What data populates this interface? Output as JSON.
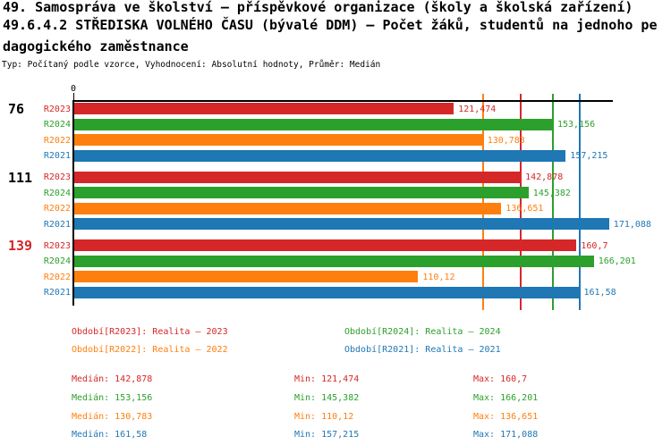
{
  "header": {
    "title_line1": "49. Samospráva ve školství – příspěvkové organizace (školy a školská zařízení)",
    "title_line2": "49.6.4.2 STŘEDISKA VOLNÉHO ČASU (bývalé DDM) – Počet žáků, studentů na jednoho pe",
    "title_line3": "dagogického zaměstnance",
    "subtitle": "Typ: Počítaný podle vzorce, Vyhodnocení: Absolutní hodnoty, Průměr: Medián"
  },
  "colors": {
    "R2023": "#d62728",
    "R2024": "#2ca02c",
    "R2022": "#ff7f0e",
    "R2021": "#1f77b4",
    "axis": "#000000"
  },
  "chart_data": {
    "type": "bar",
    "orientation": "horizontal",
    "title": "Počet žáků, studentů na jednoho pedagogického zaměstnance",
    "axis": {
      "zero_label": "0",
      "xmin": 0,
      "xmax": 172.3
    },
    "grid": false,
    "categories": [
      "76",
      "111",
      "139"
    ],
    "category_label_colors": [
      "#000000",
      "#000000",
      "#d62728"
    ],
    "series_order": [
      "R2023",
      "R2024",
      "R2022",
      "R2021"
    ],
    "groups": [
      {
        "category": "76",
        "bars": [
          {
            "series": "R2023",
            "value": 121.474,
            "label": "121,474"
          },
          {
            "series": "R2024",
            "value": 153.156,
            "label": "153,156"
          },
          {
            "series": "R2022",
            "value": 130.783,
            "label": "130,783"
          },
          {
            "series": "R2021",
            "value": 157.215,
            "label": "157,215"
          }
        ]
      },
      {
        "category": "111",
        "bars": [
          {
            "series": "R2023",
            "value": 142.878,
            "label": "142,878"
          },
          {
            "series": "R2024",
            "value": 145.382,
            "label": "145,382"
          },
          {
            "series": "R2022",
            "value": 136.651,
            "label": "136,651"
          },
          {
            "series": "R2021",
            "value": 171.088,
            "label": "171,088"
          }
        ]
      },
      {
        "category": "139",
        "bars": [
          {
            "series": "R2023",
            "value": 160.7,
            "label": "160,7"
          },
          {
            "series": "R2024",
            "value": 166.201,
            "label": "166,201"
          },
          {
            "series": "R2022",
            "value": 110.12,
            "label": "110,12"
          },
          {
            "series": "R2021",
            "value": 161.58,
            "label": "161,58"
          }
        ]
      }
    ],
    "median_lines": [
      {
        "series": "R2022",
        "value": 130.783
      },
      {
        "series": "R2023",
        "value": 142.878
      },
      {
        "series": "R2024",
        "value": 153.156
      },
      {
        "series": "R2021",
        "value": 161.58
      }
    ],
    "legend_position": "bottom"
  },
  "legend": [
    {
      "series": "R2023",
      "text": "Období[R2023]: Realita – 2023"
    },
    {
      "series": "R2024",
      "text": "Období[R2024]: Realita – 2024"
    },
    {
      "series": "R2022",
      "text": "Období[R2022]: Realita – 2022"
    },
    {
      "series": "R2021",
      "text": "Období[R2021]: Realita – 2021"
    }
  ],
  "stats": [
    {
      "series": "R2023",
      "median": "Medián: 142,878",
      "min": "Min: 121,474",
      "max": "Max: 160,7"
    },
    {
      "series": "R2024",
      "median": "Medián: 153,156",
      "min": "Min: 145,382",
      "max": "Max: 166,201"
    },
    {
      "series": "R2022",
      "median": "Medián: 130,783",
      "min": "Min: 110,12",
      "max": "Max: 136,651"
    },
    {
      "series": "R2021",
      "median": "Medián: 161,58",
      "min": "Min: 157,215",
      "max": "Max: 171,088"
    }
  ]
}
